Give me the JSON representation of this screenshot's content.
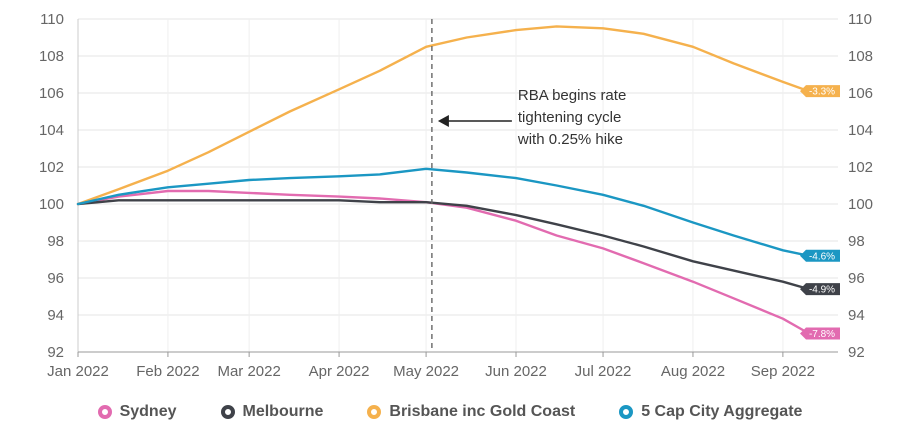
{
  "chart_data": {
    "type": "line",
    "x_ticks": [
      "Jan 2022",
      "Feb 2022",
      "Mar 2022",
      "Apr 2022",
      "May 2022",
      "Jun 2022",
      "Jul 2022",
      "Aug 2022",
      "Sep 2022"
    ],
    "ylim": [
      92,
      110
    ],
    "y_ticks": [
      "92",
      "94",
      "96",
      "98",
      "100",
      "102",
      "104",
      "106",
      "108",
      "110"
    ],
    "grid": true,
    "legend_position": "bottom",
    "annotation": {
      "lines": [
        "RBA begins rate",
        "tightening cycle",
        "with 0.25% hike"
      ],
      "date": "2022-05-03"
    },
    "series": [
      {
        "name": "Sydney",
        "color": "#e26bb0",
        "end_label": "-7.8%",
        "points": [
          [
            "2022-01-01",
            100.0
          ],
          [
            "2022-01-15",
            100.4
          ],
          [
            "2022-02-01",
            100.7
          ],
          [
            "2022-02-15",
            100.7
          ],
          [
            "2022-03-01",
            100.6
          ],
          [
            "2022-03-15",
            100.5
          ],
          [
            "2022-04-01",
            100.4
          ],
          [
            "2022-04-15",
            100.3
          ],
          [
            "2022-05-01",
            100.1
          ],
          [
            "2022-05-15",
            99.8
          ],
          [
            "2022-06-01",
            99.1
          ],
          [
            "2022-06-15",
            98.3
          ],
          [
            "2022-07-01",
            97.6
          ],
          [
            "2022-07-15",
            96.8
          ],
          [
            "2022-08-01",
            95.8
          ],
          [
            "2022-08-15",
            94.9
          ],
          [
            "2022-09-01",
            93.8
          ],
          [
            "2022-09-10",
            93.0
          ]
        ]
      },
      {
        "name": "Melbourne",
        "color": "#3f4249",
        "end_label": "-4.9%",
        "points": [
          [
            "2022-01-01",
            100.0
          ],
          [
            "2022-01-15",
            100.2
          ],
          [
            "2022-02-01",
            100.2
          ],
          [
            "2022-02-15",
            100.2
          ],
          [
            "2022-03-01",
            100.2
          ],
          [
            "2022-03-15",
            100.2
          ],
          [
            "2022-04-01",
            100.2
          ],
          [
            "2022-04-15",
            100.1
          ],
          [
            "2022-05-01",
            100.1
          ],
          [
            "2022-05-15",
            99.9
          ],
          [
            "2022-06-01",
            99.4
          ],
          [
            "2022-06-15",
            98.9
          ],
          [
            "2022-07-01",
            98.3
          ],
          [
            "2022-07-15",
            97.7
          ],
          [
            "2022-08-01",
            96.9
          ],
          [
            "2022-08-15",
            96.4
          ],
          [
            "2022-09-01",
            95.8
          ],
          [
            "2022-09-10",
            95.4
          ]
        ]
      },
      {
        "name": "Brisbane inc Gold Coast",
        "color": "#f5b14d",
        "end_label": "-3.3%",
        "points": [
          [
            "2022-01-01",
            100.0
          ],
          [
            "2022-01-15",
            100.8
          ],
          [
            "2022-02-01",
            101.8
          ],
          [
            "2022-02-15",
            102.8
          ],
          [
            "2022-03-01",
            103.9
          ],
          [
            "2022-03-15",
            105.0
          ],
          [
            "2022-04-01",
            106.2
          ],
          [
            "2022-04-15",
            107.2
          ],
          [
            "2022-05-01",
            108.5
          ],
          [
            "2022-05-15",
            109.0
          ],
          [
            "2022-06-01",
            109.4
          ],
          [
            "2022-06-15",
            109.6
          ],
          [
            "2022-07-01",
            109.5
          ],
          [
            "2022-07-15",
            109.2
          ],
          [
            "2022-08-01",
            108.5
          ],
          [
            "2022-08-15",
            107.6
          ],
          [
            "2022-09-01",
            106.6
          ],
          [
            "2022-09-10",
            106.1
          ]
        ]
      },
      {
        "name": "5 Cap City Aggregate",
        "color": "#1b97c3",
        "end_label": "-4.6%",
        "points": [
          [
            "2022-01-01",
            100.0
          ],
          [
            "2022-01-15",
            100.5
          ],
          [
            "2022-02-01",
            100.9
          ],
          [
            "2022-02-15",
            101.1
          ],
          [
            "2022-03-01",
            101.3
          ],
          [
            "2022-03-15",
            101.4
          ],
          [
            "2022-04-01",
            101.5
          ],
          [
            "2022-04-15",
            101.6
          ],
          [
            "2022-05-01",
            101.9
          ],
          [
            "2022-05-15",
            101.7
          ],
          [
            "2022-06-01",
            101.4
          ],
          [
            "2022-06-15",
            101.0
          ],
          [
            "2022-07-01",
            100.5
          ],
          [
            "2022-07-15",
            99.9
          ],
          [
            "2022-08-01",
            99.0
          ],
          [
            "2022-08-15",
            98.3
          ],
          [
            "2022-09-01",
            97.5
          ],
          [
            "2022-09-10",
            97.2
          ]
        ]
      }
    ]
  }
}
